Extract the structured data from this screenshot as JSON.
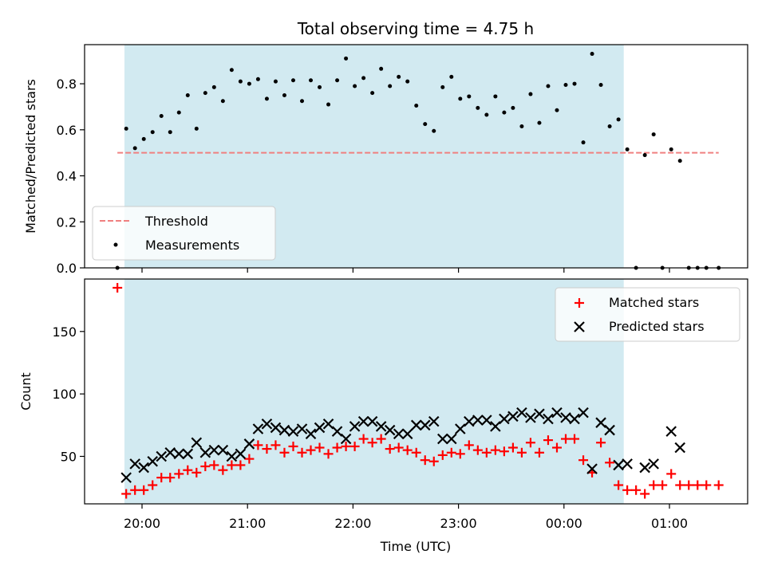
{
  "title": "Total observing time = 4.75 h",
  "colors": {
    "shade": "#add8e6",
    "threshold": "#f08080",
    "measurement": "#000000",
    "matched": "#ff0000",
    "predicted": "#000000"
  },
  "chart_data": [
    {
      "type": "scatter",
      "panel": "top",
      "ylabel": "Matched/Predicted stars",
      "ylim": [
        0,
        0.97
      ],
      "yticks": [
        "0.0",
        "0.2",
        "0.4",
        "0.6",
        "0.8"
      ],
      "shaded_interval": [
        "19:50",
        "00:34"
      ],
      "threshold": {
        "name": "Threshold",
        "value": 0.5,
        "x_start": "19:46",
        "x_end": "01:28"
      },
      "legend_position": "lower-left",
      "series": [
        {
          "name": "Measurements",
          "points": [
            [
              "19:46",
              0.0
            ],
            [
              "19:51",
              0.605
            ],
            [
              "19:56",
              0.52
            ],
            [
              "20:01",
              0.56
            ],
            [
              "20:06",
              0.59
            ],
            [
              "20:11",
              0.66
            ],
            [
              "20:16",
              0.59
            ],
            [
              "20:21",
              0.675
            ],
            [
              "20:26",
              0.75
            ],
            [
              "20:31",
              0.605
            ],
            [
              "20:36",
              0.76
            ],
            [
              "20:41",
              0.785
            ],
            [
              "20:46",
              0.725
            ],
            [
              "20:51",
              0.86
            ],
            [
              "20:56",
              0.81
            ],
            [
              "21:01",
              0.8
            ],
            [
              "21:06",
              0.82
            ],
            [
              "21:11",
              0.735
            ],
            [
              "21:16",
              0.81
            ],
            [
              "21:21",
              0.75
            ],
            [
              "21:26",
              0.815
            ],
            [
              "21:31",
              0.725
            ],
            [
              "21:36",
              0.815
            ],
            [
              "21:41",
              0.785
            ],
            [
              "21:46",
              0.71
            ],
            [
              "21:51",
              0.815
            ],
            [
              "21:56",
              0.91
            ],
            [
              "22:01",
              0.79
            ],
            [
              "22:06",
              0.825
            ],
            [
              "22:11",
              0.76
            ],
            [
              "22:16",
              0.865
            ],
            [
              "22:21",
              0.79
            ],
            [
              "22:26",
              0.83
            ],
            [
              "22:31",
              0.81
            ],
            [
              "22:36",
              0.705
            ],
            [
              "22:41",
              0.625
            ],
            [
              "22:46",
              0.595
            ],
            [
              "22:51",
              0.785
            ],
            [
              "22:56",
              0.83
            ],
            [
              "23:01",
              0.735
            ],
            [
              "23:06",
              0.745
            ],
            [
              "23:11",
              0.695
            ],
            [
              "23:16",
              0.665
            ],
            [
              "23:21",
              0.745
            ],
            [
              "23:26",
              0.675
            ],
            [
              "23:31",
              0.695
            ],
            [
              "23:36",
              0.615
            ],
            [
              "23:41",
              0.755
            ],
            [
              "23:46",
              0.63
            ],
            [
              "23:51",
              0.79
            ],
            [
              "23:56",
              0.685
            ],
            [
              "00:01",
              0.795
            ],
            [
              "00:06",
              0.8
            ],
            [
              "00:11",
              0.545
            ],
            [
              "00:16",
              0.93
            ],
            [
              "00:21",
              0.795
            ],
            [
              "00:26",
              0.615
            ],
            [
              "00:31",
              0.645
            ],
            [
              "00:36",
              0.515
            ],
            [
              "00:41",
              0.0
            ],
            [
              "00:46",
              0.49
            ],
            [
              "00:51",
              0.58
            ],
            [
              "00:56",
              0.0
            ],
            [
              "01:01",
              0.515
            ],
            [
              "01:06",
              0.465
            ],
            [
              "01:11",
              0.0
            ],
            [
              "01:16",
              0.0
            ],
            [
              "01:21",
              0.0
            ],
            [
              "01:28",
              0.0
            ]
          ]
        }
      ]
    },
    {
      "type": "scatter",
      "panel": "bottom",
      "xlabel": "Time (UTC)",
      "ylabel": "Count",
      "ylim": [
        12,
        192
      ],
      "yticks": [
        "50",
        "100",
        "150"
      ],
      "xticks": [
        "20:00",
        "21:00",
        "22:00",
        "23:00",
        "00:00",
        "01:00"
      ],
      "shaded_interval": [
        "19:50",
        "00:34"
      ],
      "legend_position": "upper-right",
      "series": [
        {
          "name": "Matched stars",
          "points": [
            [
              "19:46",
              185
            ],
            [
              "19:51",
              20
            ],
            [
              "19:56",
              23
            ],
            [
              "20:01",
              23
            ],
            [
              "20:06",
              27
            ],
            [
              "20:11",
              33
            ],
            [
              "20:16",
              33
            ],
            [
              "20:21",
              36
            ],
            [
              "20:26",
              39
            ],
            [
              "20:31",
              37
            ],
            [
              "20:36",
              42
            ],
            [
              "20:41",
              43
            ],
            [
              "20:46",
              39
            ],
            [
              "20:51",
              43
            ],
            [
              "20:56",
              43
            ],
            [
              "21:01",
              48
            ],
            [
              "21:06",
              59
            ],
            [
              "21:11",
              56
            ],
            [
              "21:16",
              59
            ],
            [
              "21:21",
              53
            ],
            [
              "21:26",
              58
            ],
            [
              "21:31",
              53
            ],
            [
              "21:36",
              55
            ],
            [
              "21:41",
              57
            ],
            [
              "21:46",
              52
            ],
            [
              "21:51",
              57
            ],
            [
              "21:56",
              58
            ],
            [
              "22:01",
              58
            ],
            [
              "22:06",
              64
            ],
            [
              "22:11",
              61
            ],
            [
              "22:16",
              64
            ],
            [
              "22:21",
              56
            ],
            [
              "22:26",
              57
            ],
            [
              "22:31",
              55
            ],
            [
              "22:36",
              53
            ],
            [
              "22:41",
              47
            ],
            [
              "22:46",
              46
            ],
            [
              "22:51",
              51
            ],
            [
              "22:56",
              53
            ],
            [
              "23:01",
              52
            ],
            [
              "23:06",
              59
            ],
            [
              "23:11",
              55
            ],
            [
              "23:16",
              53
            ],
            [
              "23:21",
              55
            ],
            [
              "23:26",
              54
            ],
            [
              "23:31",
              57
            ],
            [
              "23:36",
              53
            ],
            [
              "23:41",
              61
            ],
            [
              "23:46",
              53
            ],
            [
              "23:51",
              63
            ],
            [
              "23:56",
              57
            ],
            [
              "00:01",
              64
            ],
            [
              "00:06",
              64
            ],
            [
              "00:11",
              47
            ],
            [
              "00:16",
              37
            ],
            [
              "00:21",
              61
            ],
            [
              "00:26",
              45
            ],
            [
              "00:31",
              27
            ],
            [
              "00:36",
              23
            ],
            [
              "00:41",
              23
            ],
            [
              "00:46",
              20
            ],
            [
              "00:51",
              27
            ],
            [
              "00:56",
              27
            ],
            [
              "01:01",
              36
            ],
            [
              "01:06",
              27
            ],
            [
              "01:11",
              27
            ],
            [
              "01:16",
              27
            ],
            [
              "01:21",
              27
            ],
            [
              "01:28",
              27
            ]
          ]
        },
        {
          "name": "Predicted stars",
          "points": [
            [
              "19:51",
              33
            ],
            [
              "19:56",
              44
            ],
            [
              "20:01",
              41
            ],
            [
              "20:06",
              46
            ],
            [
              "20:11",
              50
            ],
            [
              "20:16",
              53
            ],
            [
              "20:21",
              52
            ],
            [
              "20:26",
              52
            ],
            [
              "20:31",
              61
            ],
            [
              "20:36",
              53
            ],
            [
              "20:41",
              55
            ],
            [
              "20:46",
              55
            ],
            [
              "20:51",
              50
            ],
            [
              "20:56",
              52
            ],
            [
              "21:01",
              60
            ],
            [
              "21:06",
              72
            ],
            [
              "21:11",
              76
            ],
            [
              "21:16",
              73
            ],
            [
              "21:21",
              71
            ],
            [
              "21:26",
              70
            ],
            [
              "21:31",
              72
            ],
            [
              "21:36",
              68
            ],
            [
              "21:41",
              73
            ],
            [
              "21:46",
              76
            ],
            [
              "21:51",
              70
            ],
            [
              "21:56",
              64
            ],
            [
              "22:01",
              74
            ],
            [
              "22:06",
              78
            ],
            [
              "22:11",
              78
            ],
            [
              "22:16",
              74
            ],
            [
              "22:21",
              71
            ],
            [
              "22:26",
              68
            ],
            [
              "22:31",
              68
            ],
            [
              "22:36",
              75
            ],
            [
              "22:41",
              75
            ],
            [
              "22:46",
              78
            ],
            [
              "22:51",
              64
            ],
            [
              "22:56",
              64
            ],
            [
              "23:01",
              72
            ],
            [
              "23:06",
              78
            ],
            [
              "23:11",
              79
            ],
            [
              "23:16",
              79
            ],
            [
              "23:21",
              74
            ],
            [
              "23:26",
              80
            ],
            [
              "23:31",
              82
            ],
            [
              "23:36",
              85
            ],
            [
              "23:41",
              81
            ],
            [
              "23:46",
              84
            ],
            [
              "23:51",
              80
            ],
            [
              "23:56",
              85
            ],
            [
              "00:01",
              81
            ],
            [
              "00:06",
              80
            ],
            [
              "00:11",
              85
            ],
            [
              "00:16",
              40
            ],
            [
              "00:21",
              77
            ],
            [
              "00:26",
              71
            ],
            [
              "00:31",
              43
            ],
            [
              "00:36",
              44
            ],
            [
              "00:46",
              41
            ],
            [
              "00:51",
              44
            ],
            [
              "01:01",
              70
            ],
            [
              "01:06",
              57
            ]
          ]
        }
      ]
    }
  ]
}
